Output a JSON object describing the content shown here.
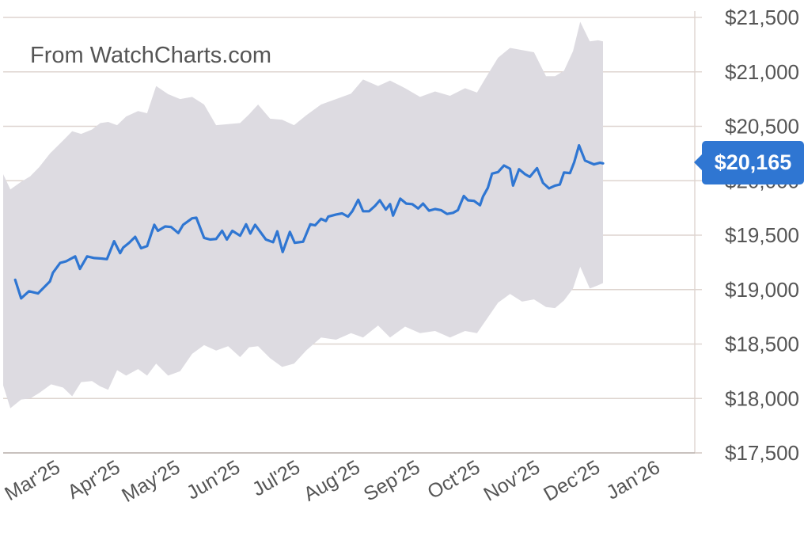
{
  "watermark": "From WatchCharts.com",
  "colors": {
    "line": "#2f76d2",
    "band": "#dddbe1",
    "grid": "#ded4cf",
    "badge": "#2f76d2"
  },
  "chart_data": {
    "type": "line",
    "title": "",
    "xlabel": "",
    "ylabel": "",
    "ylim": [
      17500,
      21500
    ],
    "yticks": [
      17500,
      18000,
      18500,
      19000,
      19500,
      20000,
      20500,
      21000,
      21500
    ],
    "ytick_labels": [
      "$17,500",
      "$18,000",
      "$18,500",
      "$19,000",
      "$19,500",
      "$20,000",
      "$20,500",
      "$21,000",
      "$21,500"
    ],
    "x_categories": [
      "Mar'25",
      "Apr'25",
      "May'25",
      "Jun'25",
      "Jul'25",
      "Aug'25",
      "Sep'25",
      "Oct'25",
      "Nov'25",
      "Dec'25",
      "Jan'26"
    ],
    "x_range_months": [
      0.2,
      11.0
    ],
    "grid": true,
    "current_value_label": "$20,165",
    "series": [
      {
        "role": "price",
        "points": [
          [
            0.2,
            19090
          ],
          [
            0.3,
            18920
          ],
          [
            0.43,
            18985
          ],
          [
            0.58,
            18965
          ],
          [
            0.78,
            19075
          ],
          [
            0.83,
            19155
          ],
          [
            0.95,
            19245
          ],
          [
            1.05,
            19260
          ],
          [
            1.2,
            19305
          ],
          [
            1.28,
            19190
          ],
          [
            1.4,
            19305
          ],
          [
            1.52,
            19290
          ],
          [
            1.65,
            19285
          ],
          [
            1.73,
            19280
          ],
          [
            1.85,
            19445
          ],
          [
            1.95,
            19335
          ],
          [
            2.0,
            19385
          ],
          [
            2.1,
            19430
          ],
          [
            2.2,
            19485
          ],
          [
            2.3,
            19380
          ],
          [
            2.4,
            19400
          ],
          [
            2.52,
            19595
          ],
          [
            2.58,
            19540
          ],
          [
            2.7,
            19580
          ],
          [
            2.8,
            19575
          ],
          [
            2.92,
            19520
          ],
          [
            3.0,
            19595
          ],
          [
            3.15,
            19655
          ],
          [
            3.22,
            19660
          ],
          [
            3.35,
            19475
          ],
          [
            3.45,
            19460
          ],
          [
            3.55,
            19465
          ],
          [
            3.65,
            19540
          ],
          [
            3.73,
            19460
          ],
          [
            3.82,
            19540
          ],
          [
            3.95,
            19495
          ],
          [
            4.05,
            19600
          ],
          [
            4.12,
            19515
          ],
          [
            4.2,
            19595
          ],
          [
            4.38,
            19460
          ],
          [
            4.5,
            19435
          ],
          [
            4.57,
            19535
          ],
          [
            4.66,
            19345
          ],
          [
            4.78,
            19530
          ],
          [
            4.86,
            19430
          ],
          [
            5.0,
            19440
          ],
          [
            5.12,
            19600
          ],
          [
            5.2,
            19590
          ],
          [
            5.3,
            19650
          ],
          [
            5.38,
            19630
          ],
          [
            5.42,
            19670
          ],
          [
            5.55,
            19690
          ],
          [
            5.65,
            19700
          ],
          [
            5.75,
            19670
          ],
          [
            5.82,
            19720
          ],
          [
            5.92,
            19825
          ],
          [
            6.0,
            19720
          ],
          [
            6.1,
            19720
          ],
          [
            6.2,
            19770
          ],
          [
            6.28,
            19820
          ],
          [
            6.38,
            19735
          ],
          [
            6.45,
            19785
          ],
          [
            6.5,
            19680
          ],
          [
            6.62,
            19835
          ],
          [
            6.72,
            19790
          ],
          [
            6.82,
            19785
          ],
          [
            6.92,
            19745
          ],
          [
            7.0,
            19790
          ],
          [
            7.1,
            19725
          ],
          [
            7.2,
            19740
          ],
          [
            7.3,
            19730
          ],
          [
            7.4,
            19695
          ],
          [
            7.5,
            19705
          ],
          [
            7.58,
            19730
          ],
          [
            7.68,
            19860
          ],
          [
            7.75,
            19820
          ],
          [
            7.85,
            19815
          ],
          [
            7.95,
            19775
          ],
          [
            8.0,
            19855
          ],
          [
            8.08,
            19935
          ],
          [
            8.15,
            20065
          ],
          [
            8.25,
            20080
          ],
          [
            8.35,
            20140
          ],
          [
            8.45,
            20110
          ],
          [
            8.5,
            19955
          ],
          [
            8.6,
            20105
          ],
          [
            8.7,
            20060
          ],
          [
            8.78,
            20035
          ],
          [
            8.9,
            20115
          ],
          [
            9.0,
            19980
          ],
          [
            9.1,
            19930
          ],
          [
            9.2,
            19955
          ],
          [
            9.28,
            19965
          ],
          [
            9.35,
            20075
          ],
          [
            9.45,
            20070
          ],
          [
            9.52,
            20170
          ],
          [
            9.6,
            20325
          ],
          [
            9.7,
            20185
          ],
          [
            9.85,
            20150
          ],
          [
            9.95,
            20165
          ],
          [
            10.0,
            20160
          ]
        ]
      },
      {
        "role": "range-upper",
        "points": [
          [
            0.0,
            20060
          ],
          [
            0.12,
            19920
          ],
          [
            0.3,
            19990
          ],
          [
            0.45,
            20040
          ],
          [
            0.6,
            20125
          ],
          [
            0.78,
            20250
          ],
          [
            1.0,
            20370
          ],
          [
            1.15,
            20455
          ],
          [
            1.3,
            20430
          ],
          [
            1.48,
            20470
          ],
          [
            1.62,
            20530
          ],
          [
            1.75,
            20540
          ],
          [
            1.9,
            20510
          ],
          [
            2.05,
            20590
          ],
          [
            2.25,
            20640
          ],
          [
            2.4,
            20620
          ],
          [
            2.55,
            20870
          ],
          [
            2.75,
            20795
          ],
          [
            2.95,
            20750
          ],
          [
            3.15,
            20770
          ],
          [
            3.35,
            20700
          ],
          [
            3.55,
            20510
          ],
          [
            3.75,
            20520
          ],
          [
            3.95,
            20530
          ],
          [
            4.1,
            20610
          ],
          [
            4.25,
            20700
          ],
          [
            4.45,
            20570
          ],
          [
            4.65,
            20560
          ],
          [
            4.85,
            20510
          ],
          [
            5.05,
            20600
          ],
          [
            5.3,
            20700
          ],
          [
            5.55,
            20750
          ],
          [
            5.8,
            20800
          ],
          [
            6.0,
            20930
          ],
          [
            6.25,
            20870
          ],
          [
            6.45,
            20920
          ],
          [
            6.7,
            20850
          ],
          [
            6.95,
            20770
          ],
          [
            7.2,
            20820
          ],
          [
            7.45,
            20780
          ],
          [
            7.7,
            20850
          ],
          [
            7.9,
            20810
          ],
          [
            8.05,
            20950
          ],
          [
            8.25,
            21130
          ],
          [
            8.45,
            21220
          ],
          [
            8.65,
            21200
          ],
          [
            8.85,
            21180
          ],
          [
            9.05,
            20960
          ],
          [
            9.2,
            20960
          ],
          [
            9.35,
            21010
          ],
          [
            9.5,
            21190
          ],
          [
            9.62,
            21460
          ],
          [
            9.78,
            21280
          ],
          [
            9.92,
            21290
          ],
          [
            10.0,
            21280
          ]
        ]
      },
      {
        "role": "range-lower",
        "points": [
          [
            0.0,
            18120
          ],
          [
            0.12,
            17910
          ],
          [
            0.3,
            17990
          ],
          [
            0.45,
            18000
          ],
          [
            0.6,
            18050
          ],
          [
            0.8,
            18130
          ],
          [
            1.0,
            18100
          ],
          [
            1.15,
            18020
          ],
          [
            1.3,
            18150
          ],
          [
            1.48,
            18160
          ],
          [
            1.62,
            18110
          ],
          [
            1.75,
            18080
          ],
          [
            1.9,
            18260
          ],
          [
            2.05,
            18210
          ],
          [
            2.25,
            18270
          ],
          [
            2.4,
            18210
          ],
          [
            2.55,
            18320
          ],
          [
            2.75,
            18210
          ],
          [
            2.95,
            18250
          ],
          [
            3.15,
            18410
          ],
          [
            3.35,
            18490
          ],
          [
            3.55,
            18440
          ],
          [
            3.75,
            18480
          ],
          [
            3.95,
            18380
          ],
          [
            4.1,
            18470
          ],
          [
            4.25,
            18480
          ],
          [
            4.45,
            18370
          ],
          [
            4.65,
            18290
          ],
          [
            4.85,
            18320
          ],
          [
            5.05,
            18440
          ],
          [
            5.3,
            18560
          ],
          [
            5.55,
            18540
          ],
          [
            5.8,
            18600
          ],
          [
            6.0,
            18560
          ],
          [
            6.25,
            18670
          ],
          [
            6.45,
            18560
          ],
          [
            6.7,
            18660
          ],
          [
            6.95,
            18600
          ],
          [
            7.2,
            18620
          ],
          [
            7.45,
            18560
          ],
          [
            7.7,
            18620
          ],
          [
            7.9,
            18600
          ],
          [
            8.05,
            18720
          ],
          [
            8.25,
            18880
          ],
          [
            8.45,
            18960
          ],
          [
            8.65,
            18890
          ],
          [
            8.85,
            18910
          ],
          [
            9.05,
            18840
          ],
          [
            9.2,
            18830
          ],
          [
            9.35,
            18900
          ],
          [
            9.5,
            19010
          ],
          [
            9.62,
            19210
          ],
          [
            9.78,
            19010
          ],
          [
            9.92,
            19040
          ],
          [
            10.0,
            19060
          ]
        ]
      }
    ]
  }
}
